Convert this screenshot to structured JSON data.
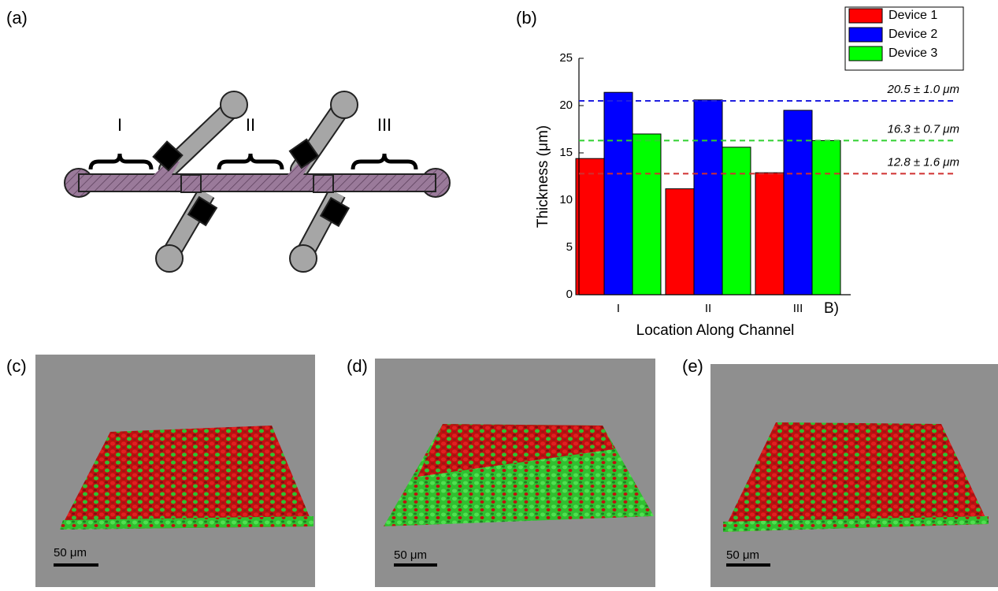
{
  "panel_labels": [
    "(a)",
    "(b)",
    "(c)",
    "(d)",
    "(e)"
  ],
  "diagram": {
    "region_labels": [
      "I",
      "II",
      "III"
    ]
  },
  "chart_data": {
    "type": "bar",
    "ylabel": "Thickness (μm)",
    "xlabel": "Location Along Channel",
    "categories": [
      "I",
      "II",
      "III"
    ],
    "series": [
      {
        "name": "Device 1",
        "color": "#ff0000",
        "values": [
          14.4,
          11.2,
          12.9
        ]
      },
      {
        "name": "Device 2",
        "color": "#0000ff",
        "values": [
          21.4,
          20.6,
          19.5
        ]
      },
      {
        "name": "Device 3",
        "color": "#00ff00",
        "values": [
          17.0,
          15.6,
          16.3
        ]
      }
    ],
    "ylim": [
      0,
      25
    ],
    "yticks": [
      0,
      5,
      10,
      15,
      20,
      25
    ],
    "reference_lines": [
      {
        "value": 20.5,
        "label": "20.5 ± 1.0 μm",
        "color": "#2020e0"
      },
      {
        "value": 16.3,
        "label": "16.3 ± 0.7 μm",
        "color": "#30d030"
      },
      {
        "value": 12.8,
        "label": "12.8 ± 1.6 μm",
        "color": "#d03030"
      }
    ],
    "annotation": "B)",
    "legend": "upper right"
  },
  "images": [
    {
      "scale_bar": "50 μm"
    },
    {
      "scale_bar": "50 μm"
    },
    {
      "scale_bar": "50 μm"
    }
  ]
}
